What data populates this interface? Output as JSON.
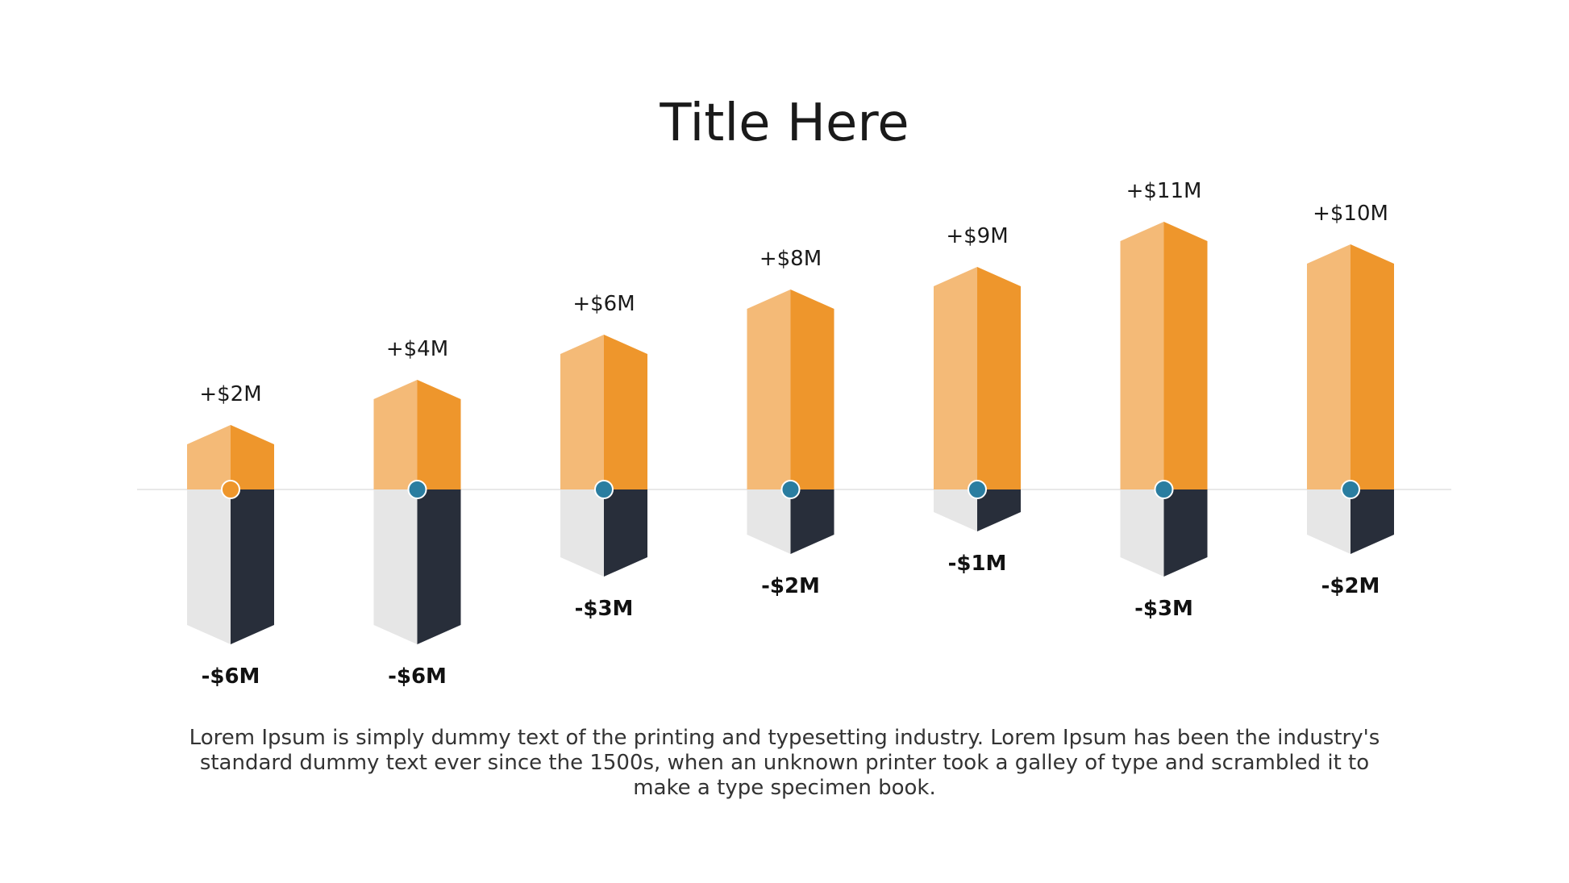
{
  "title": "Title Here",
  "body_text": "Lorem Ipsum is simply dummy text of the printing and typesetting industry. Lorem Ipsum has been the industry's standard dummy text ever since the 1500s, when an unknown printer took a galley of type and scrambled it to make a type specimen book.",
  "colors": {
    "positive_light": "#F4BA77",
    "positive_dark": "#EE962C",
    "negative_light": "#E6E6E6",
    "negative_dark": "#282E3A",
    "marker_first": "#EE962C",
    "marker": "#2A7DA0",
    "baseline": "#E8E8E8"
  },
  "chart_data": {
    "type": "bar",
    "series": [
      {
        "values": [
          2,
          4,
          6,
          8,
          9,
          11,
          10
        ],
        "labels": [
          "+$2M",
          "+$4M",
          "+$6M",
          "+$8M",
          "+$9M",
          "+$11M",
          "+$10M"
        ]
      },
      {
        "values": [
          -6,
          -6,
          -3,
          -2,
          -1,
          -3,
          -2
        ],
        "labels": [
          "-$6M",
          "-$6M",
          "-$3M",
          "-$2M",
          "-$1M",
          "-$3M",
          "-$2M"
        ]
      }
    ],
    "grid": false
  }
}
